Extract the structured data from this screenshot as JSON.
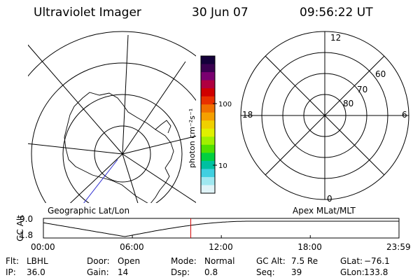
{
  "header": {
    "instrument": "Ultraviolet Imager",
    "date": "30 Jun 07",
    "time": "09:56:22 UT"
  },
  "colorbar": {
    "unit_label": "photon cm⁻²s⁻¹",
    "ticks": [
      "100",
      "10"
    ],
    "colors": [
      "#14003a",
      "#3a0050",
      "#7a0070",
      "#b00040",
      "#d00000",
      "#e83000",
      "#f07000",
      "#f5a000",
      "#f0d000",
      "#e0f000",
      "#a0f000",
      "#50e000",
      "#00d040",
      "#00c0a0",
      "#40d0e0",
      "#a0e8f0",
      "#e0f4f8"
    ]
  },
  "maps": {
    "left_caption": "Geographic Lat/Lon",
    "right_caption": "Apex MLat/MLT",
    "mlt_labels": {
      "top": "12",
      "left": "18",
      "right": "6",
      "bottom": "0"
    },
    "mlat_labels": [
      "60",
      "70",
      "80"
    ]
  },
  "timeline": {
    "ylabel": "GC Alt",
    "yticks": [
      "9.0",
      "1.8"
    ],
    "xticks": [
      "00:00",
      "06:00",
      "12:00",
      "18:00",
      "23:59"
    ],
    "current_hour": 9.94,
    "marker_color": "#d00000"
  },
  "info": {
    "row1": [
      {
        "label": "Flt:",
        "value": "LBHL"
      },
      {
        "label": "Door:",
        "value": "Open"
      },
      {
        "label": "Mode:",
        "value": "Normal"
      },
      {
        "label": "GC Alt:",
        "value": "7.5 Re"
      },
      {
        "label": "GLat:",
        "value": "−76.1"
      }
    ],
    "row2": [
      {
        "label": "IP:",
        "value": "36.0"
      },
      {
        "label": "Gain:",
        "value": "14"
      },
      {
        "label": "Dsp:",
        "value": "0.8"
      },
      {
        "label": "Seq:",
        "value": "39"
      },
      {
        "label": "GLon:",
        "value": "133.8"
      }
    ]
  }
}
